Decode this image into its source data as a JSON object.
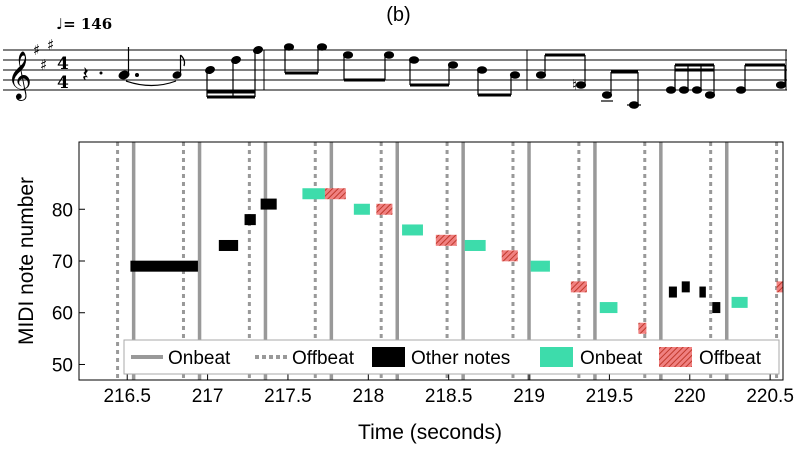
{
  "panel_label": "(b)",
  "score": {
    "tempo": "♩= 146",
    "clef_icon": "treble-clef-icon",
    "key_signature": "A major (3 sharps)",
    "time_signature": "4/4"
  },
  "colors": {
    "onbeat_line": "#999999",
    "offbeat_line": "#999999",
    "other_notes": "#000000",
    "onbeat_notes": "#3ddcab",
    "offbeat_notes": "#f08080",
    "offbeat_hatch": "#c0392b"
  },
  "chart_data": {
    "type": "scatter",
    "title": "",
    "xlabel": "Time (seconds)",
    "ylabel": "MIDI note number",
    "xlim": [
      216.2,
      220.58
    ],
    "ylim": [
      47,
      93
    ],
    "x_ticks": [
      "216.5",
      "217",
      "217.5",
      "218",
      "218.5",
      "219",
      "219.5",
      "220",
      "220.5"
    ],
    "y_ticks": [
      "50",
      "60",
      "70",
      "80"
    ],
    "x_tick_values": [
      216.5,
      217,
      217.5,
      218,
      218.5,
      219,
      219.5,
      220,
      220.5
    ],
    "y_tick_values": [
      50,
      60,
      70,
      80
    ],
    "grid": false,
    "legend_position": "bottom",
    "legend": [
      "Onbeat",
      "Offbeat",
      "Other notes",
      "Onbeat",
      "Offbeat"
    ],
    "onbeat_lines": [
      216.54,
      216.95,
      217.36,
      217.77,
      218.18,
      218.59,
      219.0,
      219.41,
      219.82,
      220.23
    ],
    "offbeat_lines": [
      216.44,
      216.85,
      217.26,
      217.67,
      218.08,
      218.49,
      218.9,
      219.31,
      219.72,
      220.13,
      220.54
    ],
    "series": [
      {
        "name": "Other notes",
        "notes": [
          {
            "start": 216.52,
            "end": 216.94,
            "pitch": 69
          },
          {
            "start": 217.07,
            "end": 217.19,
            "pitch": 73
          },
          {
            "start": 217.23,
            "end": 217.3,
            "pitch": 78
          },
          {
            "start": 217.33,
            "end": 217.43,
            "pitch": 81
          },
          {
            "start": 219.87,
            "end": 219.92,
            "pitch": 64
          },
          {
            "start": 219.95,
            "end": 220.0,
            "pitch": 65
          },
          {
            "start": 220.06,
            "end": 220.1,
            "pitch": 64
          },
          {
            "start": 220.14,
            "end": 220.19,
            "pitch": 61
          }
        ]
      },
      {
        "name": "Onbeat",
        "notes": [
          {
            "start": 217.59,
            "end": 217.73,
            "pitch": 83
          },
          {
            "start": 217.91,
            "end": 218.01,
            "pitch": 80
          },
          {
            "start": 218.21,
            "end": 218.34,
            "pitch": 76
          },
          {
            "start": 218.6,
            "end": 218.73,
            "pitch": 73
          },
          {
            "start": 219.01,
            "end": 219.13,
            "pitch": 69
          },
          {
            "start": 219.44,
            "end": 219.55,
            "pitch": 61
          },
          {
            "start": 220.26,
            "end": 220.36,
            "pitch": 62
          }
        ]
      },
      {
        "name": "Offbeat",
        "notes": [
          {
            "start": 217.73,
            "end": 217.86,
            "pitch": 83
          },
          {
            "start": 218.05,
            "end": 218.15,
            "pitch": 80
          },
          {
            "start": 218.42,
            "end": 218.55,
            "pitch": 74
          },
          {
            "start": 218.83,
            "end": 218.93,
            "pitch": 71
          },
          {
            "start": 219.26,
            "end": 219.36,
            "pitch": 65
          },
          {
            "start": 219.68,
            "end": 219.73,
            "pitch": 57
          },
          {
            "start": 220.54,
            "end": 220.58,
            "pitch": 65
          }
        ]
      }
    ]
  }
}
